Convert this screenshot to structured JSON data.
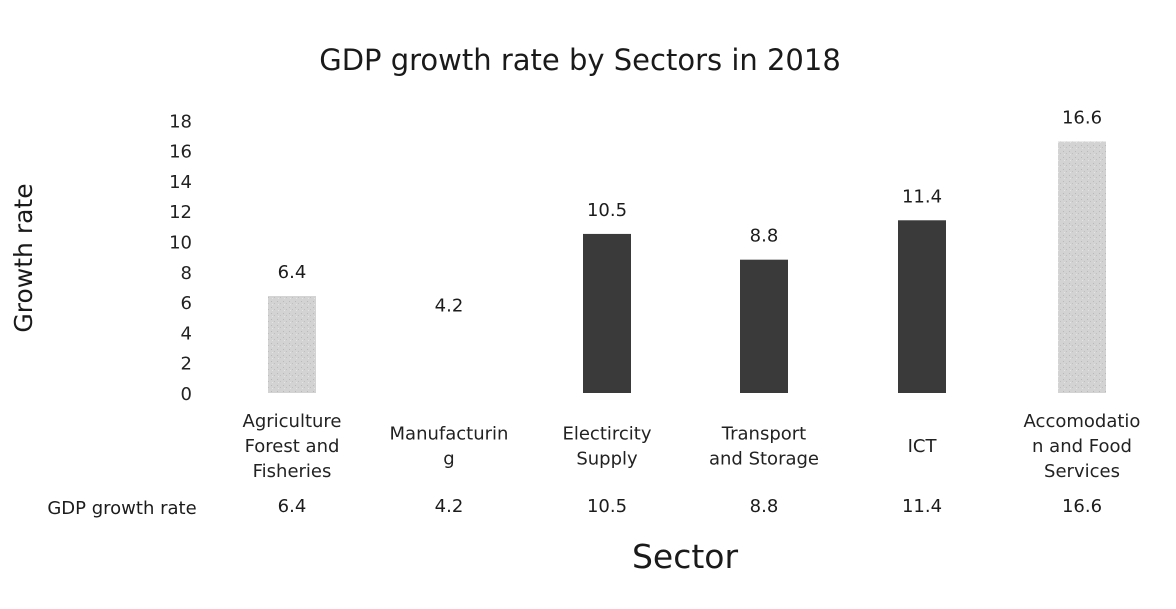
{
  "chart_data": {
    "type": "bar",
    "title": "GDP growth rate by Sectors in 2018",
    "xlabel": "Sector",
    "ylabel": "Growth rate",
    "ylim": [
      0,
      18
    ],
    "yticks": [
      0,
      2,
      4,
      6,
      8,
      10,
      12,
      14,
      16,
      18
    ],
    "grid": false,
    "categories": [
      [
        "Agriculture",
        "Forest and",
        "Fisheries"
      ],
      [
        "Manufacturin",
        "g"
      ],
      [
        "Electircity",
        "Supply"
      ],
      [
        "Transport",
        "and Storage"
      ],
      [
        "ICT"
      ],
      [
        "Accomodatio",
        "n and Food",
        "Services"
      ]
    ],
    "series": [
      {
        "name": "GDP growth rate",
        "values": [
          6.4,
          4.2,
          10.5,
          8.8,
          11.4,
          16.6
        ],
        "value_labels": [
          "6.4",
          "4.2",
          "10.5",
          "8.8",
          "11.4",
          "16.6"
        ],
        "bar_colors": [
          "#cfcfcf",
          "#ffffff",
          "#3a3a3a",
          "#3a3a3a",
          "#3a3a3a",
          "#d2d2d2"
        ]
      }
    ],
    "data_table": {
      "row_label": "GDP growth rate",
      "values": [
        "6.4",
        "4.2",
        "10.5",
        "8.8",
        "11.4",
        "16.6"
      ]
    }
  }
}
